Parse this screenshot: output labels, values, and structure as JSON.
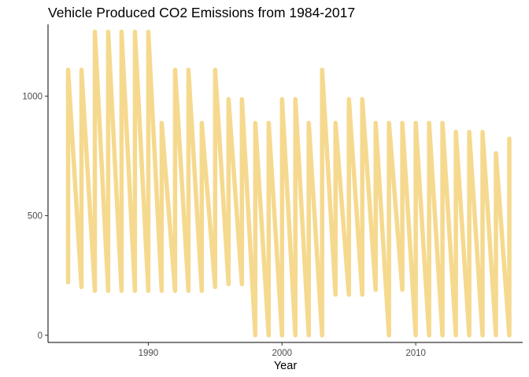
{
  "chart_data": {
    "type": "line",
    "title": "Vehicle Produced CO2 Emissions from 1984-2017",
    "xlabel": "Year",
    "ylabel": "",
    "xlim": [
      1982.5,
      2018.0
    ],
    "ylim": [
      -30,
      1300
    ],
    "x_ticks": [
      1990,
      2000,
      2010
    ],
    "y_ticks": [
      0,
      500,
      1000
    ],
    "grid": false,
    "legend": "none",
    "line_color": "#F5D98E",
    "x": [
      1984,
      1984,
      1985,
      1985,
      1986,
      1986,
      1987,
      1987,
      1988,
      1988,
      1989,
      1989,
      1990,
      1990,
      1991,
      1991,
      1992,
      1992,
      1993,
      1993,
      1994,
      1994,
      1995,
      1995,
      1996,
      1996,
      1997,
      1997,
      1998,
      1998,
      1999,
      1999,
      2000,
      2000,
      2001,
      2001,
      2002,
      2002,
      2003,
      2003,
      2004,
      2004,
      2005,
      2005,
      2006,
      2006,
      2007,
      2007,
      2008,
      2008,
      2009,
      2009,
      2010,
      2010,
      2011,
      2011,
      2012,
      2012,
      2013,
      2013,
      2014,
      2014,
      2015,
      2015,
      2016,
      2016,
      2017,
      2017
    ],
    "y": [
      222,
      1110,
      202,
      1110,
      186,
      1269,
      186,
      1269,
      186,
      1269,
      186,
      1269,
      186,
      1269,
      186,
      888,
      186,
      1110,
      186,
      1110,
      186,
      888,
      202,
      1110,
      214,
      987,
      214,
      987,
      0,
      888,
      0,
      888,
      0,
      987,
      0,
      987,
      0,
      888,
      0,
      1110,
      170,
      888,
      170,
      987,
      170,
      987,
      190,
      888,
      0,
      888,
      190,
      888,
      0,
      888,
      0,
      888,
      0,
      888,
      0,
      850,
      0,
      850,
      0,
      850,
      0,
      761,
      0,
      822
    ]
  }
}
